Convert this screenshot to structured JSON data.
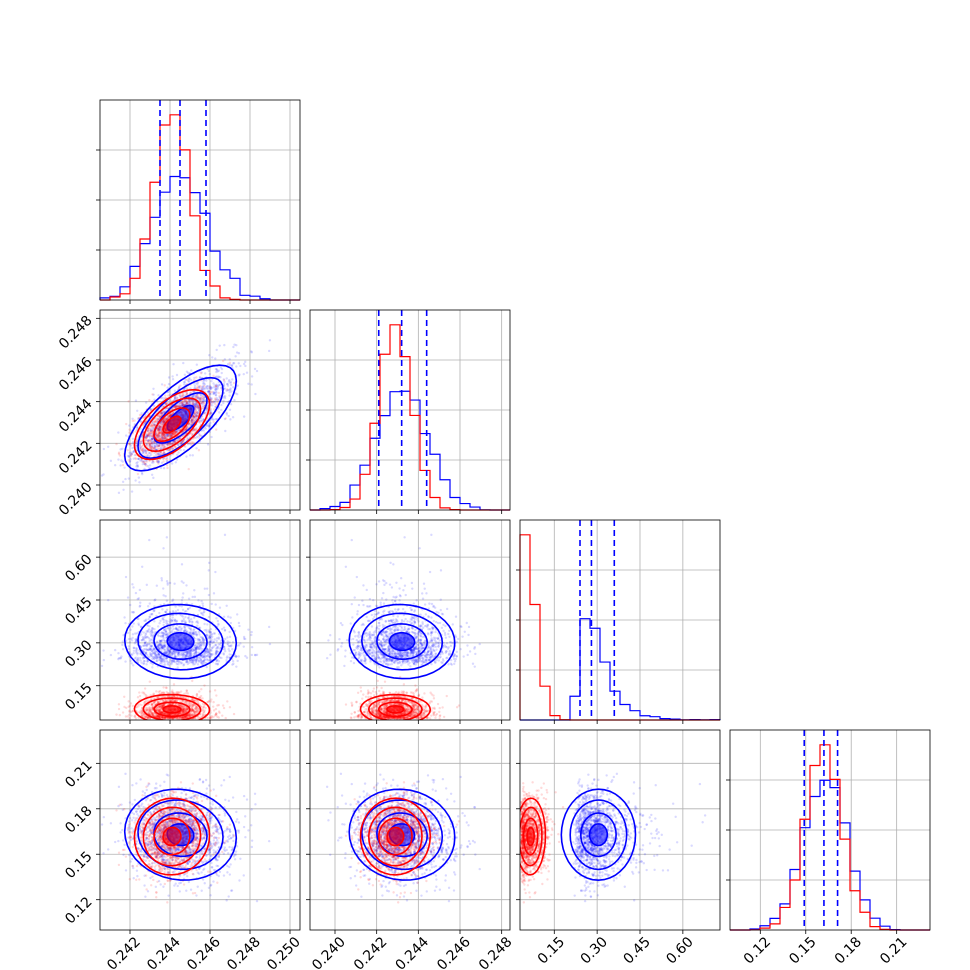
{
  "chart_data": {
    "type": "corner",
    "grid": true,
    "colors": {
      "blue": "#0000ff",
      "red": "#ff0000",
      "grid": "#b0b0b0"
    },
    "parameters": [
      {
        "range": [
          0.2405,
          0.2505
        ],
        "ticks": [
          0.242,
          0.244,
          0.246,
          0.248,
          0.25
        ],
        "tick_labels": [
          "0.242",
          "0.244",
          "0.246",
          "0.248",
          "0.250"
        ]
      },
      {
        "range": [
          0.2388,
          0.2484
        ],
        "ticks": [
          0.24,
          0.242,
          0.244,
          0.246,
          0.248
        ],
        "tick_labels": [
          "0.240",
          "0.242",
          "0.244",
          "0.246",
          "0.248"
        ]
      },
      {
        "range": [
          0.03,
          0.73
        ],
        "ticks": [
          0.15,
          0.3,
          0.45,
          0.6
        ],
        "tick_labels": [
          "0.15",
          "0.30",
          "0.45",
          "0.60"
        ]
      },
      {
        "range": [
          0.1,
          0.232
        ],
        "ticks": [
          0.12,
          0.15,
          0.18,
          0.21
        ],
        "tick_labels": [
          "0.12",
          "0.15",
          "0.18",
          "0.21"
        ]
      }
    ],
    "series": [
      {
        "color": "blue",
        "mean": [
          0.2445,
          0.2432,
          0.3,
          0.163
        ],
        "sd": [
          0.0013,
          0.0012,
          0.09,
          0.014
        ],
        "corr": [
          [
            0,
            1,
            0.7
          ],
          [
            0,
            2,
            0.05
          ],
          [
            0,
            3,
            -0.1
          ],
          [
            1,
            3,
            -0.1
          ]
        ],
        "quantiles": [
          [
            0.2435,
            0.2445,
            0.2458
          ],
          [
            0.2421,
            0.2432,
            0.2444
          ],
          [
            0.24,
            0.28,
            0.36
          ],
          [
            0.149,
            0.162,
            0.171
          ]
        ]
      },
      {
        "color": "red",
        "mean": [
          0.2441,
          0.2429,
          0.06,
          0.162
        ],
        "sd": [
          0.0009,
          0.0008,
          0.04,
          0.012
        ],
        "corr": [
          [
            0,
            1,
            0.6
          ],
          [
            0,
            3,
            0.05
          ],
          [
            1,
            3,
            0.05
          ]
        ]
      }
    ]
  }
}
